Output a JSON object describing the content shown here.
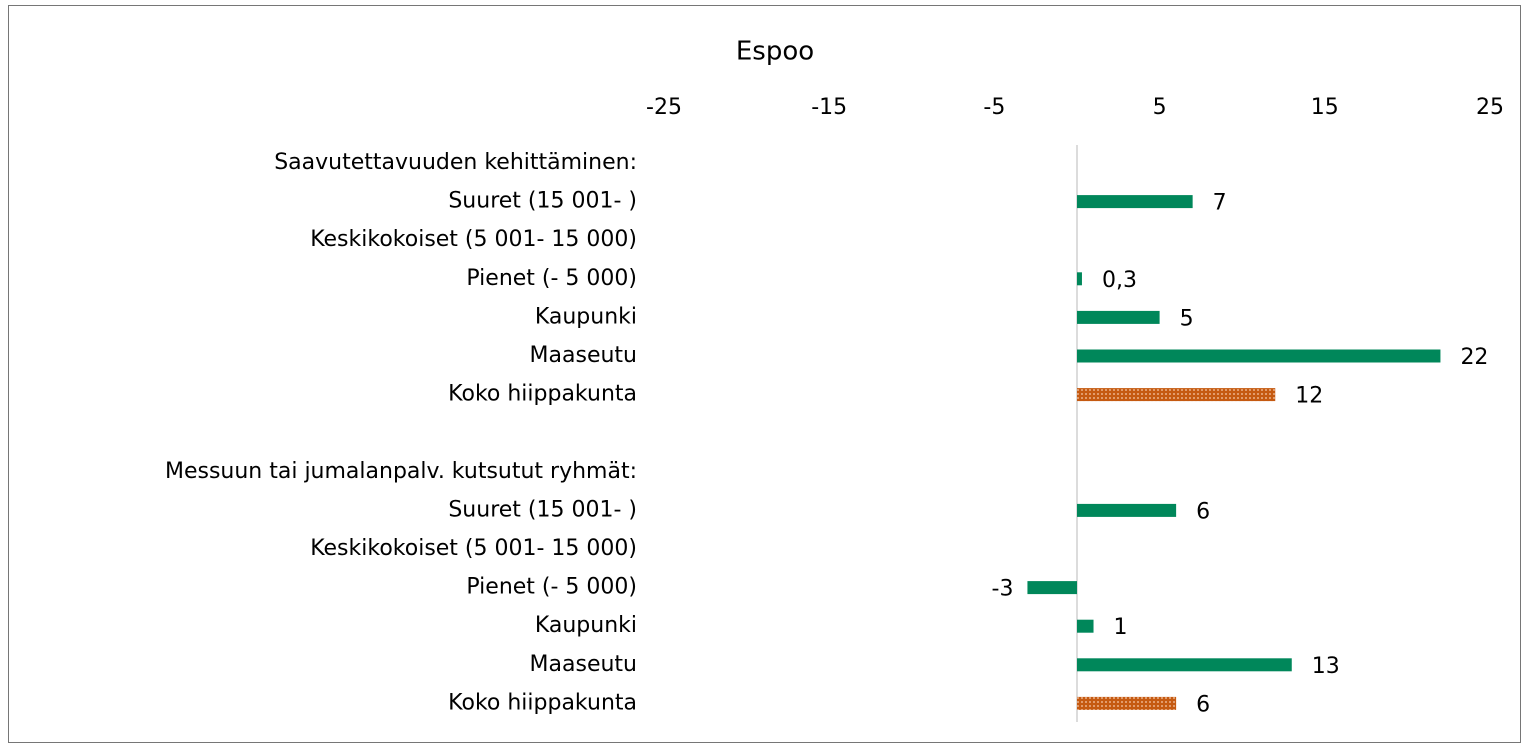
{
  "chart_data": {
    "type": "barh",
    "title": "Espoo",
    "categories": [
      "Saavutettavuuden kehittäminen:",
      "Suuret (15 001- )",
      "Keskikokoiset (5 001- 15 000)",
      "Pienet (- 5 000)",
      "Kaupunki",
      "Maaseutu",
      "Koko hiippakunta",
      null,
      "Messuun tai jumalanpalv. kutsutut ryhmät:",
      "Suuret (15 001- )",
      "Keskikokoiset (5 001- 15 000)",
      "Pienet (- 5 000)",
      "Kaupunki",
      "Maaseutu",
      "Koko hiippakunta"
    ],
    "values": [
      null,
      7,
      null,
      0.3,
      5,
      22,
      12,
      null,
      null,
      6,
      null,
      -3,
      1,
      13,
      6
    ],
    "value_labels": [
      null,
      "7",
      null,
      "0,3",
      "5",
      "22",
      "12",
      null,
      null,
      "6",
      null,
      "-3",
      "1",
      "13",
      "6"
    ],
    "colors": [
      null,
      "#00875a",
      null,
      "#00875a",
      "#00875a",
      "#00875a",
      "#c55a11",
      null,
      null,
      "#00875a",
      null,
      "#00875a",
      "#00875a",
      "#00875a",
      "#c55a11"
    ],
    "xlim": [
      -25,
      25
    ],
    "xticks": [
      -25,
      -15,
      -5,
      5,
      15,
      25
    ]
  }
}
